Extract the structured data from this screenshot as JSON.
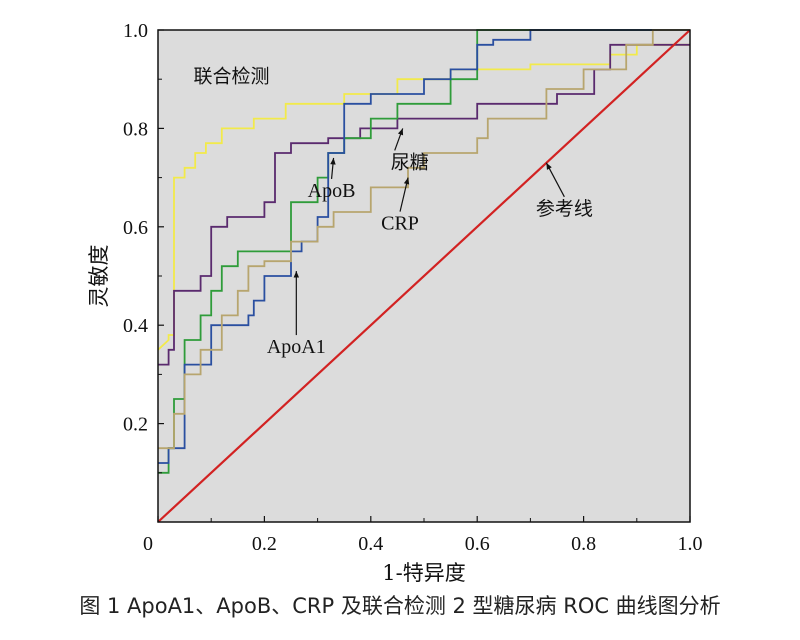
{
  "caption": "图 1    ApoA1、ApoB、CRP 及联合检测 2 型糖尿病 ROC 曲线图分析",
  "chart_data": {
    "type": "line",
    "title": "",
    "xlabel": "1-特异度",
    "ylabel": "灵敏度",
    "xlim": [
      0,
      1.0
    ],
    "ylim": [
      0,
      1.0
    ],
    "x_ticks": [
      "0",
      "0.2",
      "0.4",
      "0.6",
      "0.8",
      "1.0"
    ],
    "y_ticks": [
      "0.2",
      "0.4",
      "0.6",
      "0.8",
      "1.0"
    ],
    "grid": false,
    "background": "#dcdcdc",
    "series": [
      {
        "name": "联合检测",
        "color": "#f2ea4a",
        "points": [
          [
            0,
            0.35
          ],
          [
            0.02,
            0.37
          ],
          [
            0.02,
            0.38
          ],
          [
            0.03,
            0.38
          ],
          [
            0.03,
            0.7
          ],
          [
            0.05,
            0.7
          ],
          [
            0.05,
            0.72
          ],
          [
            0.07,
            0.72
          ],
          [
            0.07,
            0.75
          ],
          [
            0.09,
            0.75
          ],
          [
            0.09,
            0.77
          ],
          [
            0.12,
            0.77
          ],
          [
            0.12,
            0.8
          ],
          [
            0.18,
            0.8
          ],
          [
            0.18,
            0.82
          ],
          [
            0.24,
            0.82
          ],
          [
            0.24,
            0.85
          ],
          [
            0.35,
            0.85
          ],
          [
            0.35,
            0.87
          ],
          [
            0.45,
            0.87
          ],
          [
            0.45,
            0.9
          ],
          [
            0.55,
            0.9
          ],
          [
            0.55,
            0.92
          ],
          [
            0.7,
            0.92
          ],
          [
            0.7,
            0.93
          ],
          [
            0.85,
            0.93
          ],
          [
            0.85,
            0.95
          ],
          [
            0.9,
            0.95
          ],
          [
            0.9,
            0.97
          ],
          [
            1.0,
            0.97
          ]
        ]
      },
      {
        "name": "尿糖",
        "color": "#5a2a6e",
        "points": [
          [
            0,
            0.32
          ],
          [
            0.02,
            0.32
          ],
          [
            0.02,
            0.35
          ],
          [
            0.03,
            0.35
          ],
          [
            0.03,
            0.47
          ],
          [
            0.08,
            0.47
          ],
          [
            0.08,
            0.5
          ],
          [
            0.1,
            0.5
          ],
          [
            0.1,
            0.6
          ],
          [
            0.13,
            0.6
          ],
          [
            0.13,
            0.62
          ],
          [
            0.2,
            0.62
          ],
          [
            0.2,
            0.65
          ],
          [
            0.22,
            0.65
          ],
          [
            0.22,
            0.75
          ],
          [
            0.25,
            0.75
          ],
          [
            0.25,
            0.77
          ],
          [
            0.32,
            0.77
          ],
          [
            0.32,
            0.78
          ],
          [
            0.38,
            0.78
          ],
          [
            0.38,
            0.8
          ],
          [
            0.45,
            0.8
          ],
          [
            0.45,
            0.82
          ],
          [
            0.6,
            0.82
          ],
          [
            0.6,
            0.85
          ],
          [
            0.75,
            0.85
          ],
          [
            0.75,
            0.87
          ],
          [
            0.82,
            0.87
          ],
          [
            0.82,
            0.92
          ],
          [
            0.85,
            0.92
          ],
          [
            0.85,
            0.97
          ],
          [
            1.0,
            0.97
          ]
        ]
      },
      {
        "name": "ApoB",
        "color": "#2f9c3a",
        "points": [
          [
            0,
            0.1
          ],
          [
            0.02,
            0.1
          ],
          [
            0.02,
            0.15
          ],
          [
            0.03,
            0.15
          ],
          [
            0.03,
            0.25
          ],
          [
            0.05,
            0.25
          ],
          [
            0.05,
            0.37
          ],
          [
            0.08,
            0.37
          ],
          [
            0.08,
            0.42
          ],
          [
            0.1,
            0.42
          ],
          [
            0.1,
            0.47
          ],
          [
            0.12,
            0.47
          ],
          [
            0.12,
            0.52
          ],
          [
            0.15,
            0.52
          ],
          [
            0.15,
            0.55
          ],
          [
            0.25,
            0.55
          ],
          [
            0.25,
            0.6
          ],
          [
            0.25,
            0.6
          ],
          [
            0.25,
            0.65
          ],
          [
            0.3,
            0.65
          ],
          [
            0.3,
            0.7
          ],
          [
            0.32,
            0.7
          ],
          [
            0.32,
            0.75
          ],
          [
            0.35,
            0.75
          ],
          [
            0.35,
            0.78
          ],
          [
            0.4,
            0.78
          ],
          [
            0.4,
            0.82
          ],
          [
            0.45,
            0.82
          ],
          [
            0.45,
            0.85
          ],
          [
            0.55,
            0.85
          ],
          [
            0.55,
            0.9
          ],
          [
            0.6,
            0.9
          ],
          [
            0.6,
            1.0
          ],
          [
            1.0,
            1.0
          ]
        ]
      },
      {
        "name": "ApoA1",
        "color": "#2a4fa0",
        "points": [
          [
            0,
            0.12
          ],
          [
            0.02,
            0.12
          ],
          [
            0.02,
            0.15
          ],
          [
            0.05,
            0.15
          ],
          [
            0.05,
            0.32
          ],
          [
            0.1,
            0.32
          ],
          [
            0.1,
            0.35
          ],
          [
            0.1,
            0.35
          ],
          [
            0.1,
            0.4
          ],
          [
            0.17,
            0.4
          ],
          [
            0.17,
            0.42
          ],
          [
            0.18,
            0.42
          ],
          [
            0.18,
            0.45
          ],
          [
            0.2,
            0.45
          ],
          [
            0.2,
            0.5
          ],
          [
            0.25,
            0.5
          ],
          [
            0.25,
            0.55
          ],
          [
            0.27,
            0.55
          ],
          [
            0.27,
            0.57
          ],
          [
            0.3,
            0.57
          ],
          [
            0.3,
            0.62
          ],
          [
            0.32,
            0.62
          ],
          [
            0.32,
            0.75
          ],
          [
            0.35,
            0.75
          ],
          [
            0.35,
            0.85
          ],
          [
            0.4,
            0.85
          ],
          [
            0.4,
            0.87
          ],
          [
            0.5,
            0.87
          ],
          [
            0.5,
            0.9
          ],
          [
            0.55,
            0.9
          ],
          [
            0.55,
            0.92
          ],
          [
            0.6,
            0.92
          ],
          [
            0.6,
            0.97
          ],
          [
            0.63,
            0.97
          ],
          [
            0.63,
            0.98
          ],
          [
            0.7,
            0.98
          ],
          [
            0.7,
            1.0
          ],
          [
            1.0,
            1.0
          ]
        ]
      },
      {
        "name": "CRP",
        "color": "#b7a56e",
        "points": [
          [
            0,
            0.15
          ],
          [
            0.03,
            0.15
          ],
          [
            0.03,
            0.22
          ],
          [
            0.05,
            0.22
          ],
          [
            0.05,
            0.3
          ],
          [
            0.08,
            0.3
          ],
          [
            0.08,
            0.35
          ],
          [
            0.12,
            0.35
          ],
          [
            0.12,
            0.42
          ],
          [
            0.15,
            0.42
          ],
          [
            0.15,
            0.47
          ],
          [
            0.17,
            0.47
          ],
          [
            0.17,
            0.52
          ],
          [
            0.2,
            0.52
          ],
          [
            0.2,
            0.53
          ],
          [
            0.25,
            0.53
          ],
          [
            0.25,
            0.57
          ],
          [
            0.3,
            0.57
          ],
          [
            0.3,
            0.6
          ],
          [
            0.33,
            0.6
          ],
          [
            0.33,
            0.63
          ],
          [
            0.4,
            0.63
          ],
          [
            0.4,
            0.68
          ],
          [
            0.47,
            0.68
          ],
          [
            0.47,
            0.72
          ],
          [
            0.5,
            0.72
          ],
          [
            0.5,
            0.75
          ],
          [
            0.6,
            0.75
          ],
          [
            0.6,
            0.78
          ],
          [
            0.62,
            0.78
          ],
          [
            0.62,
            0.82
          ],
          [
            0.73,
            0.82
          ],
          [
            0.73,
            0.88
          ],
          [
            0.8,
            0.88
          ],
          [
            0.8,
            0.92
          ],
          [
            0.88,
            0.92
          ],
          [
            0.88,
            0.97
          ],
          [
            0.93,
            0.97
          ],
          [
            0.93,
            1.0
          ],
          [
            1.0,
            1.0
          ]
        ]
      },
      {
        "name": "参考线",
        "color": "#d22222",
        "points": [
          [
            0,
            0
          ],
          [
            1.0,
            1.0
          ]
        ]
      }
    ],
    "annotations": [
      {
        "text": "联合检测",
        "target": [
          0.17,
          0.82
        ],
        "kind": "cjk"
      },
      {
        "text": "尿糖",
        "target": [
          0.46,
          0.8
        ],
        "kind": "cjk"
      },
      {
        "text": "ApoB",
        "target": [
          0.33,
          0.74
        ],
        "kind": "latin"
      },
      {
        "text": "CRP",
        "target": [
          0.47,
          0.7
        ],
        "kind": "latin"
      },
      {
        "text": "ApoA1",
        "target": [
          0.26,
          0.51
        ],
        "kind": "latin"
      },
      {
        "text": "参考线",
        "target": [
          0.73,
          0.73
        ],
        "kind": "cjk"
      }
    ],
    "zero_label": "0"
  }
}
